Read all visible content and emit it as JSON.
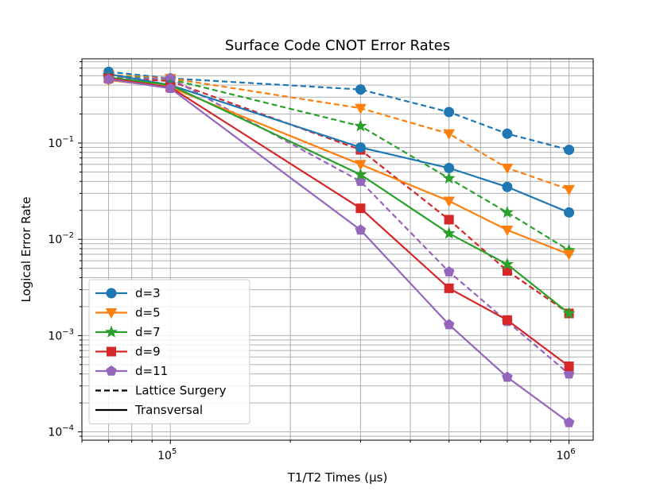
{
  "chart_data": {
    "type": "line",
    "title": "Surface Code CNOT Error Rates",
    "xlabel": "T1/T2 Times (μs)",
    "ylabel": "Logical Error Rate",
    "xscale": "log",
    "yscale": "log",
    "xlim": [
      60000,
      1150000
    ],
    "ylim": [
      8.2e-05,
      0.75
    ],
    "grid": true,
    "grid_minor": true,
    "legend_position": "lower-left",
    "x_tick_labels": [
      {
        "value": 100000,
        "base": "10",
        "exp": "5"
      },
      {
        "value": 1000000,
        "base": "10",
        "exp": "6"
      }
    ],
    "y_tick_labels": [
      {
        "value": 0.1,
        "base": "10",
        "exp": "−1"
      },
      {
        "value": 0.01,
        "base": "10",
        "exp": "−2"
      },
      {
        "value": 0.001,
        "base": "10",
        "exp": "−3"
      },
      {
        "value": 0.0001,
        "base": "10",
        "exp": "−4"
      }
    ],
    "x": [
      70000,
      100000,
      300000,
      500000,
      700000,
      1000000
    ],
    "series": [
      {
        "name": "d=3",
        "color": "#1f77b4",
        "marker": "circle",
        "style": "dashed",
        "values": [
          0.55,
          0.47,
          0.36,
          0.21,
          0.125,
          0.085
        ]
      },
      {
        "name": "d=3",
        "color": "#1f77b4",
        "marker": "circle",
        "style": "solid",
        "values": [
          0.52,
          0.4,
          0.09,
          0.055,
          0.035,
          0.019
        ]
      },
      {
        "name": "d=5",
        "color": "#ff7f0e",
        "marker": "triangle-down",
        "style": "dashed",
        "values": [
          0.51,
          0.47,
          0.23,
          0.125,
          0.055,
          0.033
        ]
      },
      {
        "name": "d=5",
        "color": "#ff7f0e",
        "marker": "triangle-down",
        "style": "solid",
        "values": [
          0.45,
          0.38,
          0.06,
          0.025,
          0.0125,
          0.007
        ]
      },
      {
        "name": "d=7",
        "color": "#2ca02c",
        "marker": "star",
        "style": "dashed",
        "values": [
          0.5,
          0.46,
          0.15,
          0.043,
          0.019,
          0.0077
        ]
      },
      {
        "name": "d=7",
        "color": "#2ca02c",
        "marker": "star",
        "style": "solid",
        "values": [
          0.48,
          0.4,
          0.047,
          0.0115,
          0.0055,
          0.0017
        ]
      },
      {
        "name": "d=9",
        "color": "#d62728",
        "marker": "square",
        "style": "dashed",
        "values": [
          0.48,
          0.44,
          0.085,
          0.016,
          0.0047,
          0.0017
        ]
      },
      {
        "name": "d=9",
        "color": "#d62728",
        "marker": "square",
        "style": "solid",
        "values": [
          0.47,
          0.38,
          0.021,
          0.0031,
          0.00145,
          0.00048
        ]
      },
      {
        "name": "d=11",
        "color": "#9467bd",
        "marker": "pentagon",
        "style": "dashed",
        "values": [
          0.47,
          0.47,
          0.04,
          0.0046,
          0.0014,
          0.0004
        ]
      },
      {
        "name": "d=11",
        "color": "#9467bd",
        "marker": "pentagon",
        "style": "solid",
        "values": [
          0.46,
          0.37,
          0.0125,
          0.0013,
          0.00037,
          0.000125
        ]
      }
    ],
    "legend": [
      {
        "label": "d=3",
        "color": "#1f77b4",
        "marker": "circle",
        "style": "solid"
      },
      {
        "label": "d=5",
        "color": "#ff7f0e",
        "marker": "triangle-down",
        "style": "solid"
      },
      {
        "label": "d=7",
        "color": "#2ca02c",
        "marker": "star",
        "style": "solid"
      },
      {
        "label": "d=9",
        "color": "#d62728",
        "marker": "square",
        "style": "solid"
      },
      {
        "label": "d=11",
        "color": "#9467bd",
        "marker": "pentagon",
        "style": "solid"
      },
      {
        "label": "Lattice Surgery",
        "color": "#000000",
        "marker": "none",
        "style": "dashed"
      },
      {
        "label": "Transversal",
        "color": "#000000",
        "marker": "none",
        "style": "solid"
      }
    ]
  }
}
